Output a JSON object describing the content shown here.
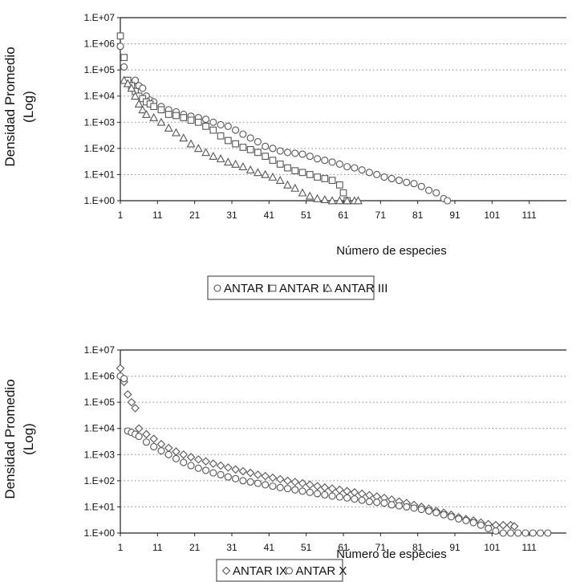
{
  "chart_data": [
    {
      "type": "scatter",
      "xlabel": "Número de especies",
      "ylabel": [
        "Densidad Promedio",
        "(Log)"
      ],
      "y_scale": "log",
      "ylim": [
        1,
        10000000
      ],
      "xlim": [
        1,
        121
      ],
      "grid": "horizontal dotted",
      "legend_position": "bottom",
      "x_ticks": [
        "1",
        "11",
        "21",
        "31",
        "41",
        "51",
        "61",
        "71",
        "81",
        "91",
        "101",
        "111"
      ],
      "y_ticks": [
        "1.E+00",
        "1.E+01",
        "1.E+02",
        "1.E+03",
        "1.E+04",
        "1.E+05",
        "1.E+06",
        "1.E+07"
      ],
      "series": [
        {
          "name": "ANTAR I",
          "marker": "circle",
          "points": [
            [
              1,
              800000
            ],
            [
              2,
              130000
            ],
            [
              3,
              40000
            ],
            [
              4,
              30000
            ],
            [
              5,
              40000
            ],
            [
              6,
              25000
            ],
            [
              7,
              20000
            ],
            [
              8,
              10000
            ],
            [
              9,
              7000
            ],
            [
              10,
              6000
            ],
            [
              12,
              4000
            ],
            [
              14,
              3000
            ],
            [
              16,
              2500
            ],
            [
              18,
              2000
            ],
            [
              20,
              1700
            ],
            [
              22,
              1500
            ],
            [
              24,
              1300
            ],
            [
              26,
              1000
            ],
            [
              28,
              800
            ],
            [
              30,
              700
            ],
            [
              32,
              500
            ],
            [
              34,
              350
            ],
            [
              36,
              250
            ],
            [
              38,
              180
            ],
            [
              40,
              120
            ],
            [
              42,
              100
            ],
            [
              44,
              80
            ],
            [
              46,
              70
            ],
            [
              48,
              65
            ],
            [
              50,
              60
            ],
            [
              52,
              50
            ],
            [
              54,
              40
            ],
            [
              56,
              35
            ],
            [
              58,
              30
            ],
            [
              60,
              25
            ],
            [
              62,
              20
            ],
            [
              64,
              18
            ],
            [
              66,
              15
            ],
            [
              68,
              12
            ],
            [
              70,
              10
            ],
            [
              72,
              8
            ],
            [
              74,
              7
            ],
            [
              76,
              6
            ],
            [
              78,
              5
            ],
            [
              80,
              4.5
            ],
            [
              82,
              3.5
            ],
            [
              84,
              2.5
            ],
            [
              86,
              2
            ],
            [
              88,
              1.2
            ],
            [
              89,
              1
            ]
          ]
        },
        {
          "name": "ANTAR II",
          "marker": "square",
          "points": [
            [
              1,
              2000000
            ],
            [
              2,
              300000
            ],
            [
              3,
              40000
            ],
            [
              4,
              25000
            ],
            [
              5,
              15000
            ],
            [
              6,
              10000
            ],
            [
              7,
              8000
            ],
            [
              8,
              6000
            ],
            [
              9,
              5000
            ],
            [
              10,
              4000
            ],
            [
              12,
              3000
            ],
            [
              14,
              2000
            ],
            [
              16,
              1800
            ],
            [
              18,
              1500
            ],
            [
              20,
              1200
            ],
            [
              22,
              1000
            ],
            [
              24,
              700
            ],
            [
              26,
              500
            ],
            [
              28,
              300
            ],
            [
              30,
              200
            ],
            [
              32,
              150
            ],
            [
              34,
              110
            ],
            [
              36,
              90
            ],
            [
              38,
              70
            ],
            [
              40,
              50
            ],
            [
              42,
              35
            ],
            [
              44,
              25
            ],
            [
              46,
              18
            ],
            [
              48,
              14
            ],
            [
              50,
              12
            ],
            [
              52,
              10
            ],
            [
              54,
              8
            ],
            [
              56,
              7
            ],
            [
              58,
              6
            ],
            [
              60,
              4
            ],
            [
              61,
              2
            ],
            [
              62,
              1
            ]
          ]
        },
        {
          "name": "ANTAR III",
          "marker": "triangle",
          "points": [
            [
              2,
              40000
            ],
            [
              3,
              30000
            ],
            [
              4,
              20000
            ],
            [
              5,
              10000
            ],
            [
              6,
              5000
            ],
            [
              7,
              3000
            ],
            [
              8,
              2000
            ],
            [
              10,
              1500
            ],
            [
              12,
              1000
            ],
            [
              14,
              600
            ],
            [
              16,
              400
            ],
            [
              18,
              250
            ],
            [
              20,
              150
            ],
            [
              22,
              100
            ],
            [
              24,
              70
            ],
            [
              26,
              50
            ],
            [
              28,
              40
            ],
            [
              30,
              30
            ],
            [
              32,
              25
            ],
            [
              34,
              20
            ],
            [
              36,
              15
            ],
            [
              38,
              12
            ],
            [
              40,
              10
            ],
            [
              42,
              8
            ],
            [
              44,
              6
            ],
            [
              46,
              4
            ],
            [
              48,
              3
            ],
            [
              50,
              2
            ],
            [
              52,
              1.5
            ],
            [
              54,
              1.2
            ],
            [
              56,
              1.1
            ],
            [
              58,
              1
            ],
            [
              60,
              1
            ],
            [
              62,
              1
            ],
            [
              64,
              1
            ],
            [
              65,
              1
            ]
          ]
        }
      ]
    },
    {
      "type": "scatter",
      "xlabel": "Número de especies",
      "ylabel": [
        "Densidad Promedio",
        "(Log)"
      ],
      "y_scale": "log",
      "ylim": [
        1,
        10000000
      ],
      "xlim": [
        1,
        121
      ],
      "grid": "horizontal dotted",
      "legend_position": "bottom",
      "x_ticks": [
        "1",
        "11",
        "21",
        "31",
        "41",
        "51",
        "61",
        "71",
        "81",
        "91",
        "101",
        "111"
      ],
      "y_ticks": [
        "1.E+00",
        "1.E+01",
        "1.E+02",
        "1.E+03",
        "1.E+04",
        "1.E+05",
        "1.E+06",
        "1.E+07"
      ],
      "series": [
        {
          "name": "ANTAR IX",
          "marker": "diamond",
          "points": [
            [
              1,
              2000000
            ],
            [
              2,
              600000
            ],
            [
              3,
              200000
            ],
            [
              4,
              100000
            ],
            [
              5,
              60000
            ],
            [
              6,
              10000
            ],
            [
              8,
              6000
            ],
            [
              10,
              4000
            ],
            [
              12,
              2500
            ],
            [
              14,
              1800
            ],
            [
              16,
              1300
            ],
            [
              18,
              1000
            ],
            [
              20,
              800
            ],
            [
              22,
              650
            ],
            [
              24,
              550
            ],
            [
              26,
              450
            ],
            [
              28,
              380
            ],
            [
              30,
              320
            ],
            [
              32,
              270
            ],
            [
              34,
              230
            ],
            [
              36,
              200
            ],
            [
              38,
              170
            ],
            [
              40,
              150
            ],
            [
              42,
              130
            ],
            [
              44,
              115
            ],
            [
              46,
              100
            ],
            [
              48,
              90
            ],
            [
              50,
              80
            ],
            [
              52,
              70
            ],
            [
              54,
              62
            ],
            [
              56,
              55
            ],
            [
              58,
              50
            ],
            [
              60,
              45
            ],
            [
              62,
              40
            ],
            [
              64,
              36
            ],
            [
              66,
              32
            ],
            [
              68,
              28
            ],
            [
              70,
              25
            ],
            [
              72,
              22
            ],
            [
              74,
              19
            ],
            [
              76,
              16
            ],
            [
              78,
              14
            ],
            [
              80,
              12
            ],
            [
              82,
              10
            ],
            [
              84,
              8.5
            ],
            [
              86,
              7
            ],
            [
              88,
              6
            ],
            [
              90,
              5
            ],
            [
              92,
              4
            ],
            [
              94,
              3.4
            ],
            [
              96,
              3
            ],
            [
              98,
              2.5
            ],
            [
              100,
              2.2
            ],
            [
              102,
              2
            ],
            [
              104,
              2
            ],
            [
              106,
              2
            ],
            [
              107,
              1.8
            ]
          ]
        },
        {
          "name": "ANTAR X",
          "marker": "circle",
          "points": [
            [
              1,
              1000000
            ],
            [
              2,
              800000
            ],
            [
              3,
              8000
            ],
            [
              4,
              7000
            ],
            [
              5,
              6000
            ],
            [
              6,
              5000
            ],
            [
              8,
              3000
            ],
            [
              10,
              2000
            ],
            [
              12,
              1400
            ],
            [
              14,
              1000
            ],
            [
              16,
              700
            ],
            [
              18,
              500
            ],
            [
              20,
              380
            ],
            [
              22,
              300
            ],
            [
              24,
              250
            ],
            [
              26,
              200
            ],
            [
              28,
              170
            ],
            [
              30,
              140
            ],
            [
              32,
              120
            ],
            [
              34,
              100
            ],
            [
              36,
              90
            ],
            [
              38,
              80
            ],
            [
              40,
              70
            ],
            [
              42,
              62
            ],
            [
              44,
              55
            ],
            [
              46,
              50
            ],
            [
              48,
              45
            ],
            [
              50,
              40
            ],
            [
              52,
              36
            ],
            [
              54,
              32
            ],
            [
              56,
              29
            ],
            [
              58,
              26
            ],
            [
              60,
              24
            ],
            [
              62,
              22
            ],
            [
              64,
              20
            ],
            [
              66,
              18
            ],
            [
              68,
              16
            ],
            [
              70,
              15
            ],
            [
              72,
              14
            ],
            [
              74,
              12
            ],
            [
              76,
              11
            ],
            [
              78,
              10
            ],
            [
              80,
              9
            ],
            [
              82,
              8
            ],
            [
              84,
              7
            ],
            [
              86,
              6
            ],
            [
              88,
              5
            ],
            [
              90,
              4.2
            ],
            [
              92,
              3.5
            ],
            [
              94,
              3
            ],
            [
              96,
              2.5
            ],
            [
              98,
              2
            ],
            [
              100,
              1.5
            ],
            [
              102,
              1.2
            ],
            [
              104,
              1
            ],
            [
              106,
              1
            ],
            [
              108,
              1
            ],
            [
              110,
              1
            ],
            [
              112,
              1
            ],
            [
              114,
              1
            ],
            [
              116,
              1
            ]
          ]
        }
      ]
    }
  ]
}
